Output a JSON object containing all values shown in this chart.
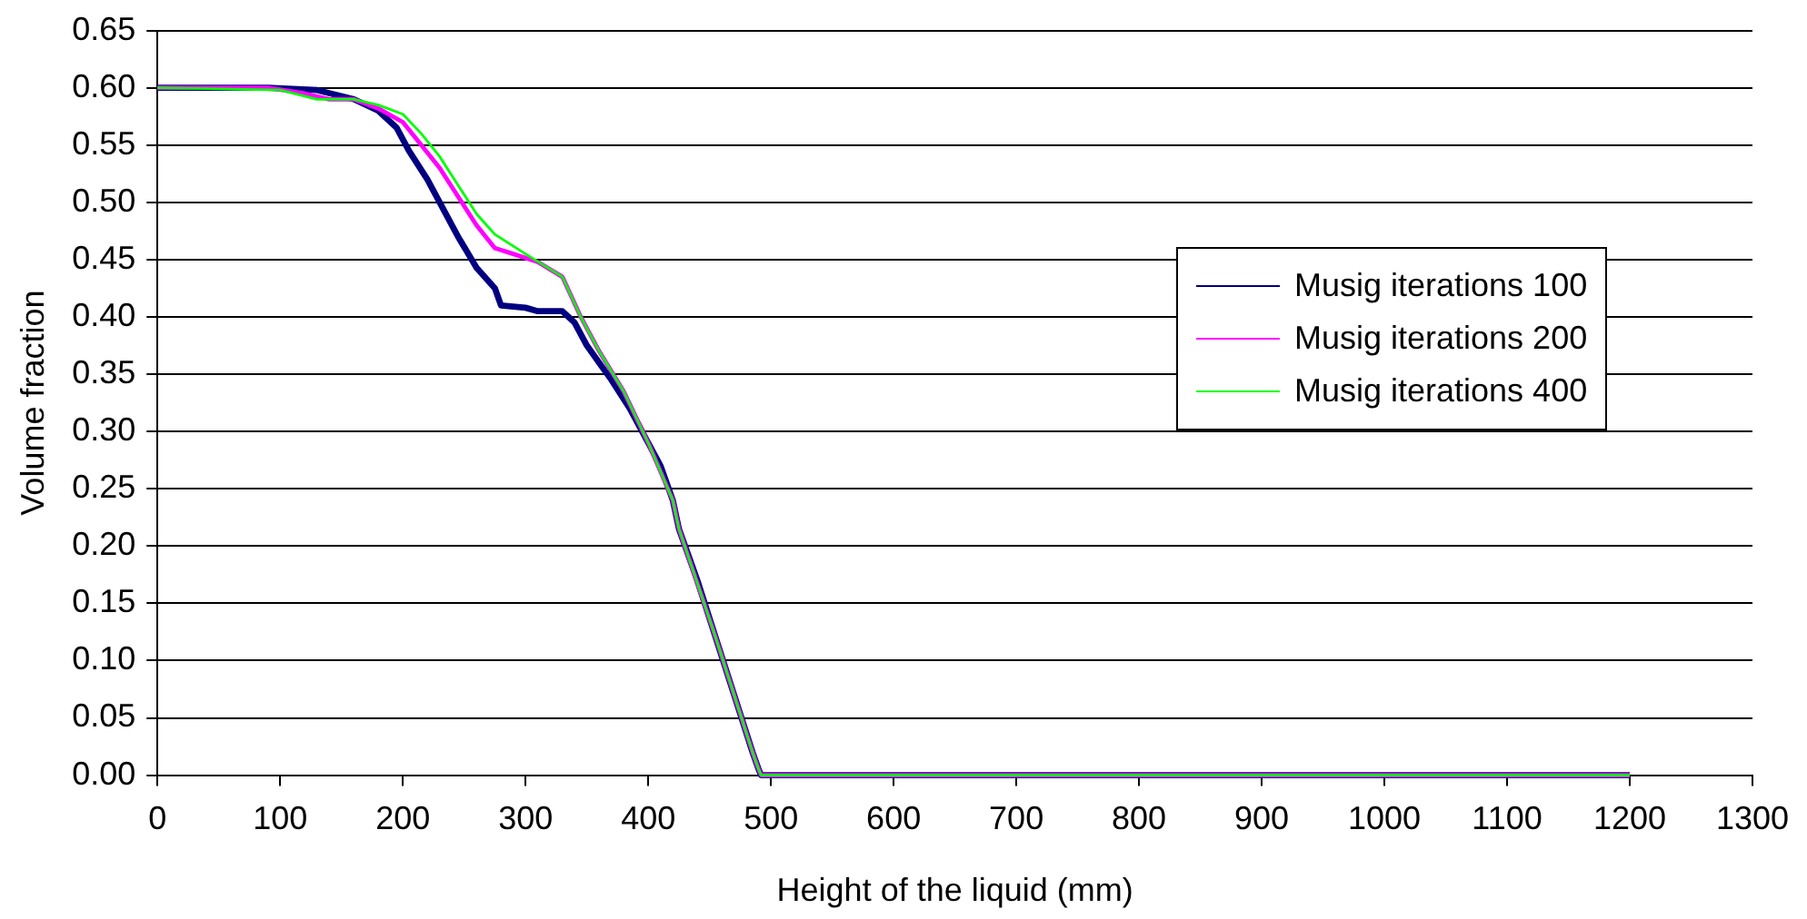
{
  "chart_data": {
    "type": "line",
    "xlabel": "Height of the liquid (mm)",
    "ylabel": "Volume fraction",
    "xlim": [
      0,
      1300
    ],
    "xticks": [
      0,
      100,
      200,
      300,
      400,
      500,
      600,
      700,
      800,
      900,
      1000,
      1100,
      1200,
      1300
    ],
    "ylim": [
      0,
      0.65
    ],
    "yticks": [
      {
        "value": 0,
        "label": "0.00"
      },
      {
        "value": 0.05,
        "label": "0.05"
      },
      {
        "value": 0.1,
        "label": "0.10"
      },
      {
        "value": 0.15,
        "label": "0.15"
      },
      {
        "value": 0.2,
        "label": "0.20"
      },
      {
        "value": 0.25,
        "label": "0.25"
      },
      {
        "value": 0.3,
        "label": "0.30"
      },
      {
        "value": 0.35,
        "label": "0.35"
      },
      {
        "value": 0.4,
        "label": "0.40"
      },
      {
        "value": 0.45,
        "label": "0.45"
      },
      {
        "value": 0.5,
        "label": "0.50"
      },
      {
        "value": 0.55,
        "label": "0.55"
      },
      {
        "value": 0.6,
        "label": "0.60"
      },
      {
        "value": 0.65,
        "label": "0.65"
      }
    ],
    "grid": "y",
    "legend": "right",
    "marker": "none",
    "line_style": "solid",
    "series": [
      {
        "name": "Musig iterations 100",
        "color": "#000080",
        "x": [
          0,
          90,
          130,
          160,
          180,
          195,
          205,
          220,
          230,
          245,
          260,
          275,
          280,
          300,
          310,
          330,
          340,
          350,
          360,
          370,
          385,
          400,
          410,
          420,
          425,
          440,
          455,
          470,
          485,
          490,
          492,
          520,
          1200
        ],
        "values": [
          0.6,
          0.6,
          0.598,
          0.59,
          0.58,
          0.565,
          0.545,
          0.52,
          0.5,
          0.47,
          0.443,
          0.425,
          0.41,
          0.408,
          0.405,
          0.405,
          0.395,
          0.375,
          0.36,
          0.345,
          0.32,
          0.29,
          0.27,
          0.24,
          0.215,
          0.17,
          0.12,
          0.07,
          0.02,
          0.005,
          0,
          0,
          0
        ]
      },
      {
        "name": "Musig iterations 200",
        "color": "#ff00ff",
        "x": [
          0,
          90,
          120,
          140,
          160,
          180,
          200,
          215,
          230,
          245,
          260,
          275,
          290,
          310,
          330,
          345,
          360,
          380,
          400,
          420,
          425,
          455,
          485,
          490,
          492,
          1200
        ],
        "values": [
          0.6,
          0.6,
          0.595,
          0.59,
          0.59,
          0.582,
          0.57,
          0.55,
          0.53,
          0.505,
          0.48,
          0.46,
          0.455,
          0.448,
          0.435,
          0.4,
          0.37,
          0.335,
          0.29,
          0.24,
          0.215,
          0.12,
          0.02,
          0.005,
          0,
          0
        ]
      },
      {
        "name": "Musig iterations 400",
        "color": "#00ff00",
        "x": [
          0,
          100,
          130,
          160,
          180,
          200,
          215,
          230,
          245,
          260,
          275,
          300,
          330,
          345,
          360,
          380,
          400,
          420,
          425,
          455,
          485,
          490,
          492,
          1200
        ],
        "values": [
          0.6,
          0.598,
          0.59,
          0.59,
          0.585,
          0.577,
          0.56,
          0.54,
          0.515,
          0.49,
          0.472,
          0.455,
          0.435,
          0.4,
          0.37,
          0.335,
          0.29,
          0.24,
          0.215,
          0.12,
          0.02,
          0.005,
          0,
          0
        ]
      }
    ]
  }
}
